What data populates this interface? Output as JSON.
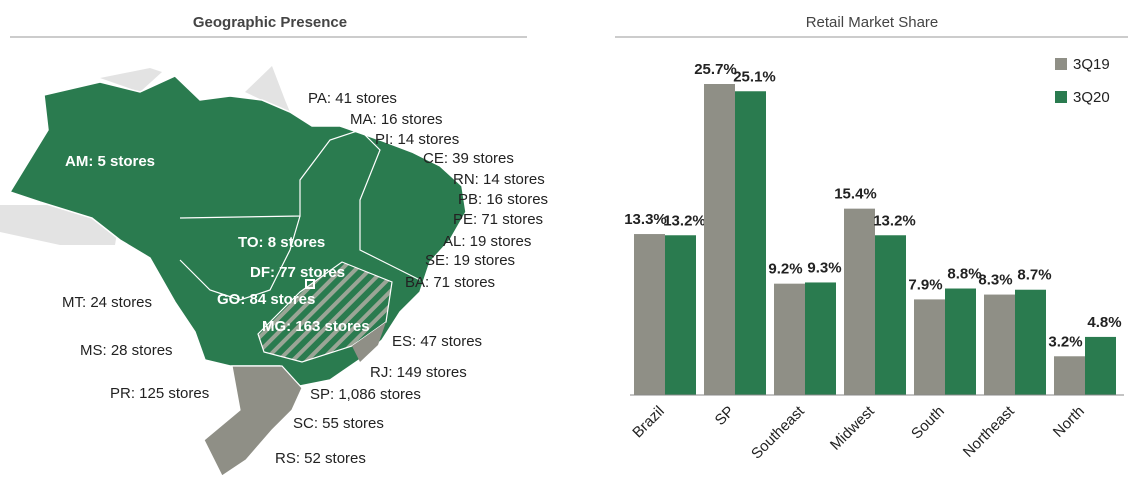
{
  "map": {
    "title": "Geographic Presence",
    "inner_labels": [
      "AM:  5 stores",
      "TO: 8 stores",
      "DF: 77 stores",
      "GO: 84 stores",
      "MG: 163 stores"
    ],
    "outer_labels": [
      "PA: 41 stores",
      "MA: 16 stores",
      "PI: 14 stores",
      "CE: 39 stores",
      "RN: 14 stores",
      "PB: 16 stores",
      "PE: 71 stores",
      "AL: 19 stores",
      "SE: 19 stores",
      "BA: 71 stores",
      "MT: 24 stores",
      "MS: 28 stores",
      "ES: 47 stores",
      "RJ: 149 stores",
      "PR: 125 stores",
      "SP: 1,086 stores",
      "SC: 55 stores",
      "RS: 52 stores"
    ]
  },
  "chart_data": {
    "type": "bar",
    "title": "Retail Market Share",
    "categories": [
      "Brazil",
      "SP",
      "Southeast",
      "Midwest",
      "South",
      "Northeast",
      "North"
    ],
    "series": [
      {
        "name": "3Q19",
        "color": "#8f8f86",
        "values": [
          13.3,
          25.7,
          9.2,
          15.4,
          7.9,
          8.3,
          3.2
        ],
        "value_labels": [
          "13.3%",
          "25.7%",
          "9.2%",
          "15.4%",
          "7.9%",
          "8.3%",
          "3.2%"
        ]
      },
      {
        "name": "3Q20",
        "color": "#2a7b4f",
        "values": [
          13.2,
          25.1,
          9.3,
          13.2,
          8.8,
          8.7,
          4.8
        ],
        "value_labels": [
          "13.2%",
          "25.1%",
          "9.3%",
          "13.2%",
          "8.8%",
          "8.7%",
          "4.8%"
        ]
      }
    ],
    "legend": "top-right"
  }
}
